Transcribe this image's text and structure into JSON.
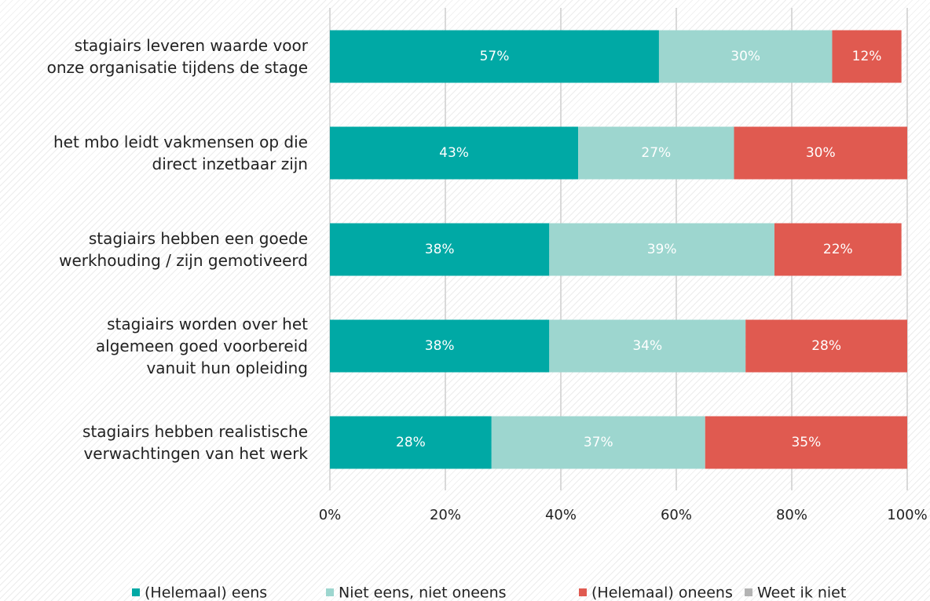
{
  "chart_data": {
    "type": "stacked_barh",
    "categories": [
      "stagiairs leveren waarde voor\nonze organisatie tijdens de stage",
      "het mbo leidt vakmensen op die\ndirect inzetbaar zijn",
      "stagiairs hebben een goede\nwerkhouding / zijn gemotiveerd",
      "stagiairs worden over het\nalgemeen goed voorbereid\nvanuit hun opleiding",
      "stagiairs hebben realistische\nverwachtingen van het werk"
    ],
    "series": [
      {
        "name": "(Helemaal) eens",
        "color": "#00a9a5",
        "values": [
          57,
          43,
          38,
          38,
          28
        ],
        "value_labels": [
          "57%",
          "43%",
          "38%",
          "38%",
          "28%"
        ]
      },
      {
        "name": "Niet eens, niet oneens",
        "color": "#9dd6cf",
        "values": [
          30,
          27,
          39,
          34,
          37
        ],
        "value_labels": [
          "30%",
          "27%",
          "39%",
          "34%",
          "37%"
        ]
      },
      {
        "name": "(Helemaal) oneens",
        "color": "#e05a50",
        "values": [
          12,
          30,
          22,
          28,
          35
        ],
        "value_labels": [
          "12%",
          "30%",
          "22%",
          "28%",
          "35%"
        ]
      },
      {
        "name": "Weet ik niet",
        "color": "#b3b3b3",
        "values": [
          0,
          0,
          0,
          0,
          0
        ]
      }
    ],
    "xlim": [
      0,
      100
    ],
    "xticks": [
      {
        "value": 0,
        "label": "0%"
      },
      {
        "value": 20,
        "label": "20%"
      },
      {
        "value": 40,
        "label": "40%"
      },
      {
        "value": 60,
        "label": "60%"
      },
      {
        "value": 80,
        "label": "80%"
      },
      {
        "value": 100,
        "label": "100%"
      }
    ],
    "grid": true
  }
}
